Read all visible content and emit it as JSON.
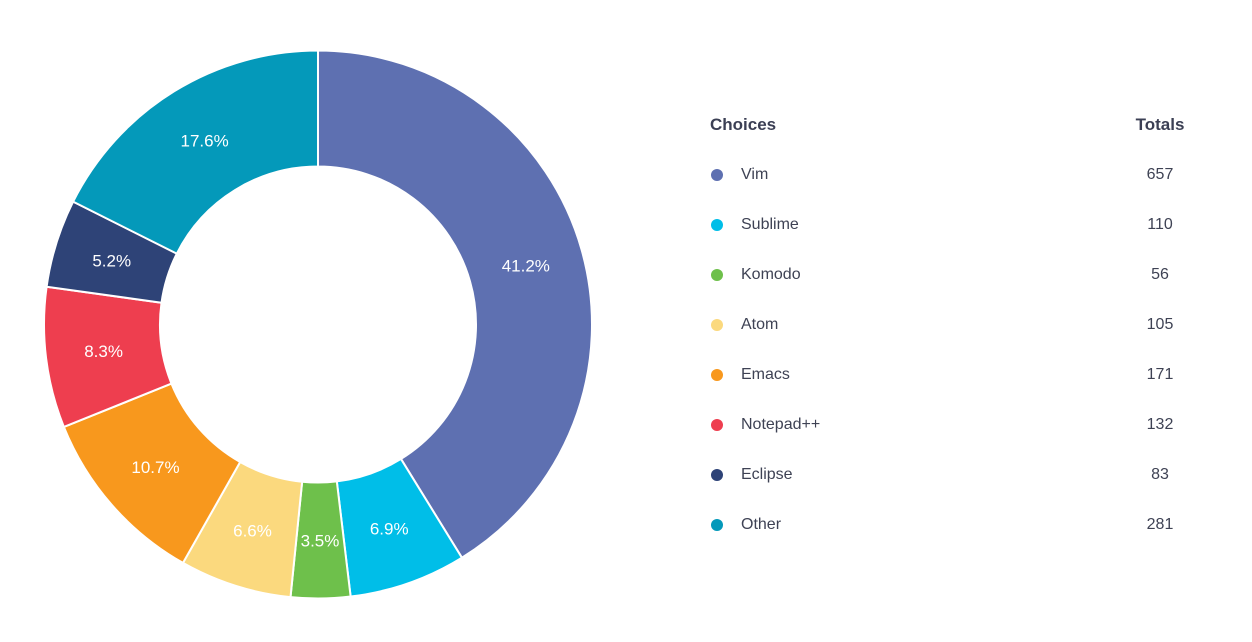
{
  "chart_data": {
    "type": "pie",
    "subtype": "donut",
    "title": "",
    "legend_position": "right",
    "categories": [
      "Vim",
      "Sublime",
      "Komodo",
      "Atom",
      "Emacs",
      "Notepad++",
      "Eclipse",
      "Other"
    ],
    "values": [
      657,
      110,
      56,
      105,
      171,
      132,
      83,
      281
    ],
    "percentages": [
      41.2,
      6.9,
      3.5,
      6.6,
      10.7,
      8.3,
      5.2,
      17.6
    ],
    "percent_labels": [
      "41.2%",
      "6.9%",
      "3.5%",
      "6.6%",
      "10.7%",
      "8.3%",
      "5.2%",
      "17.6%"
    ],
    "colors": [
      "#5E70B1",
      "#00BEE8",
      "#6EC04B",
      "#FBD97E",
      "#F8981D",
      "#EE3E4F",
      "#2E4377",
      "#0499BA"
    ],
    "slice_label_color": "#FFFFFF",
    "separator_color": "#FFFFFF"
  },
  "legend": {
    "choices_header": "Choices",
    "totals_header": "Totals"
  }
}
